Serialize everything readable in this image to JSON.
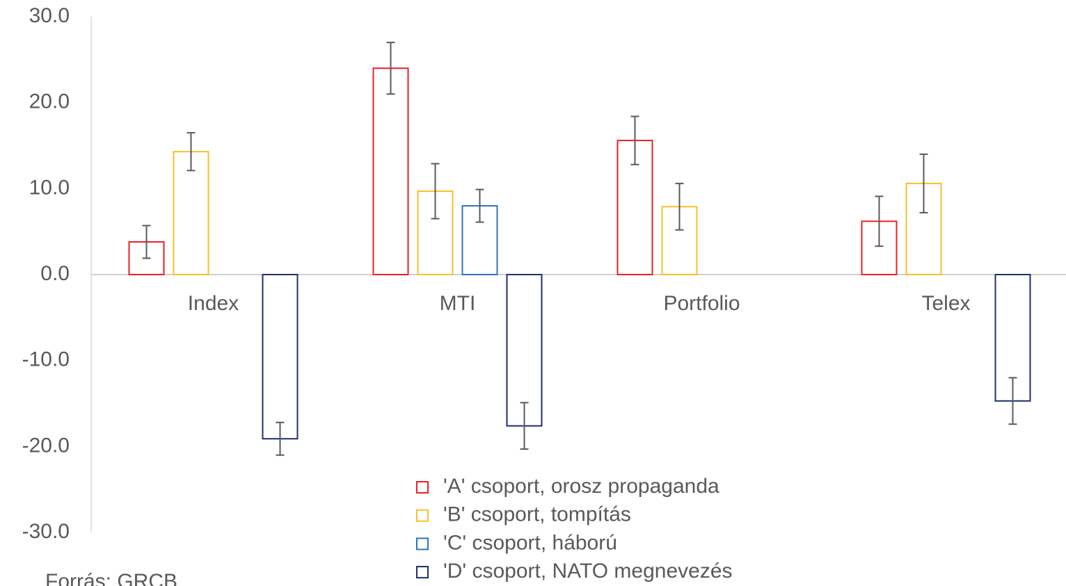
{
  "chart_data": {
    "type": "bar",
    "categories": [
      "Index",
      "MTI",
      "Portfolio",
      "Telex"
    ],
    "series": [
      {
        "name": "'A' csoport, orosz propaganda",
        "color": "#e8202a",
        "values": [
          3.8,
          24.0,
          15.6,
          6.2
        ],
        "errors": [
          1.9,
          3.0,
          2.8,
          2.9
        ]
      },
      {
        "name": "'B' csoport, tompítás",
        "color": "#f5c02a",
        "values": [
          14.3,
          9.7,
          7.9,
          10.6
        ],
        "errors": [
          2.2,
          3.2,
          2.7,
          3.4
        ]
      },
      {
        "name": "'C' csoport, háború",
        "color": "#2e75b6",
        "values": [
          null,
          8.0,
          null,
          null
        ],
        "errors": [
          null,
          1.9,
          null,
          null
        ]
      },
      {
        "name": "'D' csoport, NATO megnevezés",
        "color": "#1f2d6b",
        "values": [
          -19.1,
          -17.6,
          null,
          -14.7
        ],
        "errors": [
          1.9,
          2.7,
          null,
          2.7
        ]
      }
    ],
    "ylim": [
      -30,
      30
    ],
    "yticks": [
      {
        "value": -30,
        "label": "-30.0"
      },
      {
        "value": -20,
        "label": "-20.0"
      },
      {
        "value": -10,
        "label": "-10.0"
      },
      {
        "value": 0,
        "label": "0.0"
      },
      {
        "value": 10,
        "label": "10.0"
      },
      {
        "value": 20,
        "label": "20.0"
      },
      {
        "value": 30,
        "label": "30.0"
      }
    ],
    "source": "Forrás: GRCB"
  }
}
